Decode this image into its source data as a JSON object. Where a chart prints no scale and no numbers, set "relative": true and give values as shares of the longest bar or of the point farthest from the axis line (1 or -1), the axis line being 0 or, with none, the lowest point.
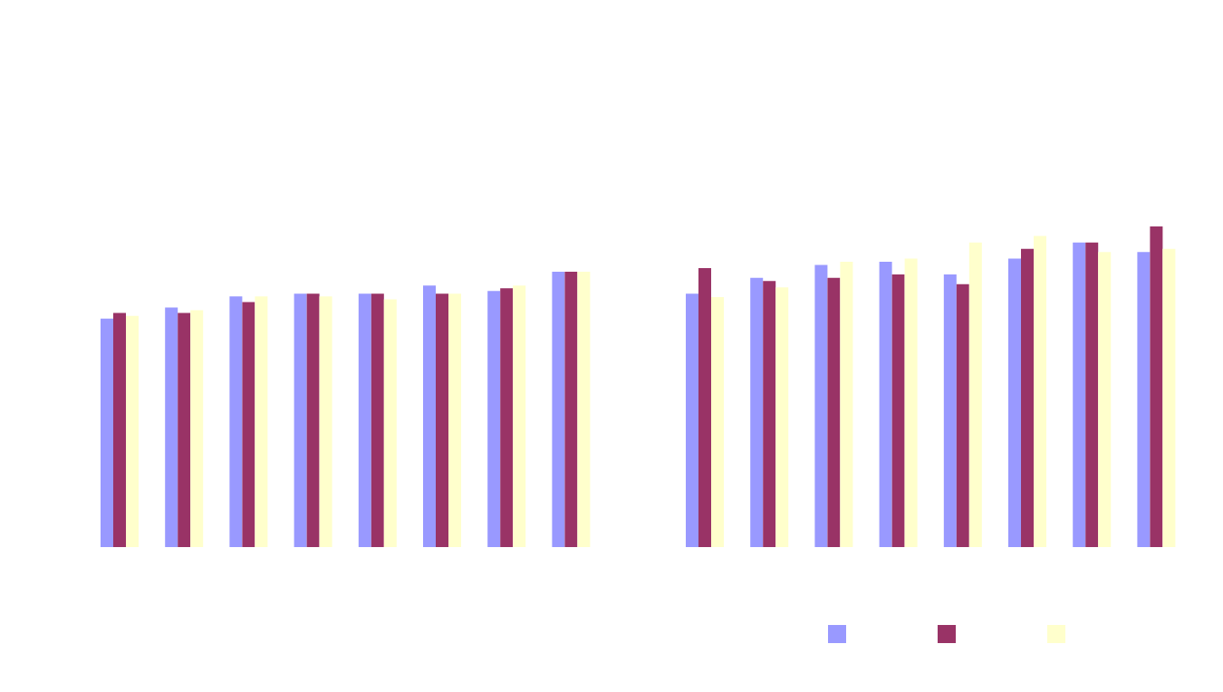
{
  "chart_data": [
    {
      "type": "bar",
      "relative": true,
      "categories": [
        null,
        null,
        null,
        null,
        null,
        null,
        null,
        null
      ],
      "series": [
        {
          "color": "#9999ff",
          "values": [
            0.83,
            0.87,
            0.91,
            0.92,
            0.92,
            0.95,
            0.93,
            1
          ]
        },
        {
          "color": "#993366",
          "values": [
            0.85,
            0.85,
            0.89,
            0.92,
            0.92,
            0.92,
            0.94,
            1
          ]
        },
        {
          "color": "#ffffcc",
          "values": [
            0.84,
            0.86,
            0.91,
            0.91,
            0.9,
            0.92,
            0.95,
            1
          ]
        }
      ]
    },
    {
      "type": "bar",
      "relative": true,
      "categories": [
        null,
        null,
        null,
        null,
        null,
        null,
        null,
        null
      ],
      "series": [
        {
          "color": "#9999ff",
          "values": [
            0.79,
            0.84,
            0.88,
            0.89,
            0.85,
            0.9,
            0.95,
            0.92
          ]
        },
        {
          "color": "#993366",
          "values": [
            0.87,
            0.83,
            0.84,
            0.85,
            0.82,
            0.93,
            0.95,
            1
          ]
        },
        {
          "color": "#ffffcc",
          "values": [
            0.78,
            0.81,
            0.89,
            0.9,
            0.95,
            0.97,
            0.92,
            0.93
          ]
        }
      ]
    }
  ]
}
